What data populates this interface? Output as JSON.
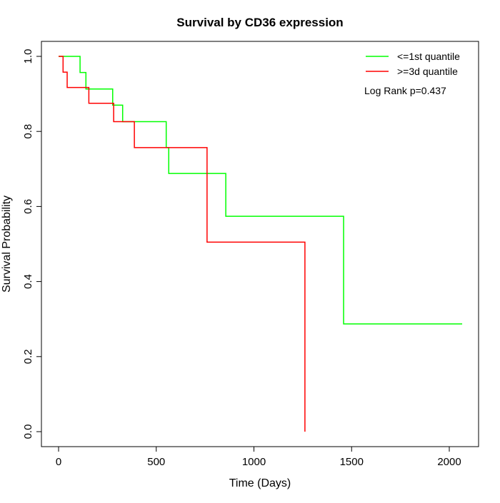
{
  "chart_data": {
    "type": "line",
    "subtype": "kaplan-meier step",
    "title": "Survival by CD36 expression",
    "xlabel": "Time (Days)",
    "ylabel": "Survival Probability",
    "xlim": [
      0,
      2066
    ],
    "ylim": [
      0,
      1
    ],
    "xticks": [
      "0",
      "500",
      "1000",
      "1500",
      "2000"
    ],
    "yticks": [
      "0.0",
      "0.2",
      "0.4",
      "0.6",
      "0.8",
      "1.0"
    ],
    "grid": false,
    "legend_position": "top-right",
    "annotation": "Log Rank p=0.437",
    "series": [
      {
        "name": "<=1st quantile",
        "color": "#00ff00",
        "steps": [
          [
            0,
            1.0
          ],
          [
            110,
            0.957
          ],
          [
            140,
            0.913
          ],
          [
            277,
            0.87
          ],
          [
            328,
            0.826
          ],
          [
            551,
            0.757
          ],
          [
            564,
            0.688
          ],
          [
            856,
            0.574
          ],
          [
            1459,
            0.287
          ],
          [
            2066,
            0.287
          ]
        ]
      },
      {
        "name": ">=3d quantile",
        "color": "#ff0000",
        "steps": [
          [
            0,
            1.0
          ],
          [
            23,
            0.958
          ],
          [
            44,
            0.917
          ],
          [
            155,
            0.875
          ],
          [
            282,
            0.826
          ],
          [
            388,
            0.757
          ],
          [
            760,
            0.505
          ],
          [
            1261,
            0.0
          ]
        ]
      }
    ]
  }
}
